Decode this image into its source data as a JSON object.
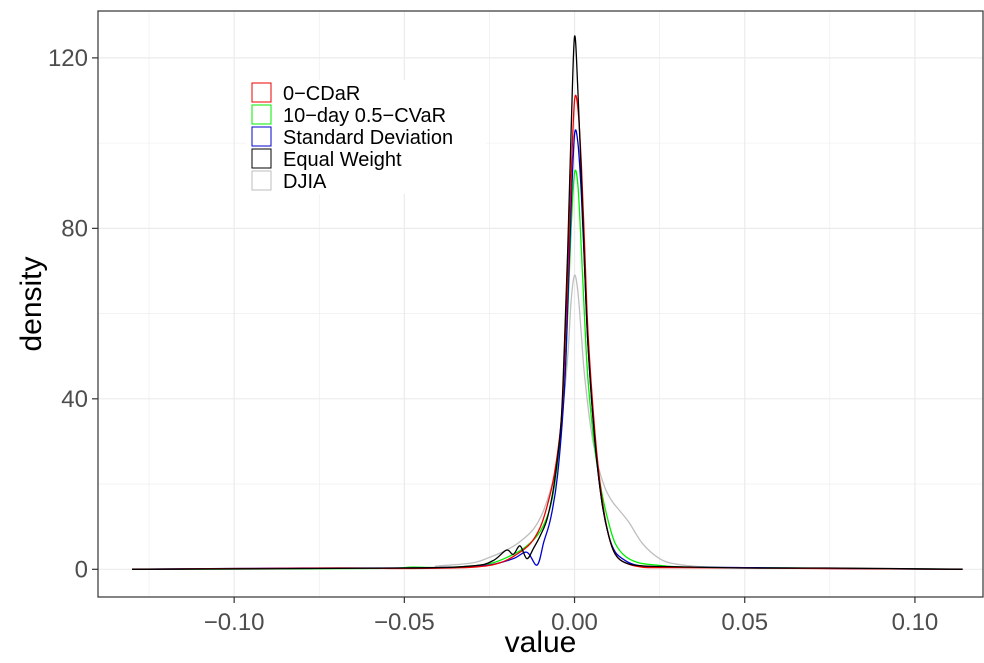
{
  "chart_data": {
    "type": "line",
    "title": "",
    "xlabel": "value",
    "ylabel": "density",
    "xlim": [
      -0.14,
      0.12
    ],
    "ylim": [
      -6.5,
      131
    ],
    "x_ticks": [
      -0.1,
      -0.05,
      0.0,
      0.05,
      0.1
    ],
    "x_tick_labels": [
      "−0.10",
      "−0.05",
      "0.00",
      "0.05",
      "0.10"
    ],
    "y_ticks": [
      0,
      40,
      80,
      120
    ],
    "y_tick_labels": [
      "0",
      "40",
      "80",
      "120"
    ],
    "grid": true,
    "legend_position": "top-left",
    "series": [
      {
        "name": "DJIA",
        "color": "#bebebe",
        "x": [
          -0.13,
          -0.05,
          -0.04,
          -0.03,
          -0.025,
          -0.02,
          -0.016,
          -0.012,
          -0.009,
          -0.006,
          -0.004,
          -0.002,
          -0.001,
          0.0,
          0.001,
          0.002,
          0.003,
          0.005,
          0.007,
          0.009,
          0.011,
          0.013,
          0.016,
          0.02,
          0.025,
          0.03,
          0.04,
          0.06,
          0.08,
          0.114
        ],
        "y": [
          0.1,
          0.3,
          0.8,
          1.5,
          2.8,
          4.5,
          6.5,
          9.5,
          14,
          22,
          33,
          50,
          63,
          69,
          65,
          55,
          45,
          32,
          24,
          19,
          16,
          14,
          11,
          6,
          2.5,
          1.2,
          0.5,
          0.3,
          0.2,
          0.1
        ]
      },
      {
        "name": "10−day 0.5−CVaR",
        "color": "#00ee00",
        "x": [
          -0.13,
          -0.06,
          -0.048,
          -0.04,
          -0.03,
          -0.024,
          -0.018,
          -0.014,
          -0.01,
          -0.007,
          -0.005,
          -0.003,
          -0.002,
          -0.001,
          0.0,
          0.001,
          0.002,
          0.003,
          0.004,
          0.006,
          0.008,
          0.01,
          0.012,
          0.015,
          0.019,
          0.024,
          0.03,
          0.045,
          0.065,
          0.114
        ],
        "y": [
          0.0,
          0.2,
          0.5,
          0.4,
          0.8,
          1.5,
          3.5,
          5.5,
          9,
          15,
          25,
          42,
          60,
          80,
          93,
          90,
          75,
          58,
          44,
          28,
          18,
          11,
          6,
          3,
          1.5,
          1.0,
          0.6,
          0.4,
          0.3,
          0.0
        ]
      },
      {
        "name": "Standard Deviation",
        "color": "#0000cd",
        "x": [
          -0.13,
          -0.08,
          -0.05,
          -0.035,
          -0.025,
          -0.018,
          -0.014,
          -0.011,
          -0.009,
          -0.007,
          -0.005,
          -0.003,
          -0.002,
          -0.001,
          0.0,
          0.001,
          0.002,
          0.003,
          0.004,
          0.006,
          0.008,
          0.01,
          0.012,
          0.015,
          0.018,
          0.022,
          0.03,
          0.05,
          0.075,
          0.114
        ],
        "y": [
          0.0,
          0.3,
          0.3,
          0.5,
          1.0,
          2.5,
          4.0,
          1.0,
          6.5,
          12,
          22,
          42,
          62,
          85,
          102,
          100,
          88,
          70,
          52,
          30,
          16,
          8,
          4,
          2,
          1.0,
          0.6,
          0.5,
          0.4,
          0.2,
          0.0
        ]
      },
      {
        "name": "0−CDaR",
        "color": "#ee0000",
        "x": [
          -0.13,
          -0.07,
          -0.05,
          -0.03,
          -0.022,
          -0.017,
          -0.013,
          -0.01,
          -0.008,
          -0.006,
          -0.004,
          -0.003,
          -0.002,
          -0.001,
          0.0,
          0.001,
          0.002,
          0.003,
          0.004,
          0.006,
          0.008,
          0.01,
          0.012,
          0.015,
          0.02,
          0.03,
          0.05,
          0.07,
          0.114
        ],
        "y": [
          0.0,
          0.3,
          0.2,
          0.5,
          1.5,
          3.5,
          6,
          10,
          15,
          22,
          34,
          48,
          68,
          92,
          110,
          108,
          95,
          75,
          55,
          32,
          17,
          8,
          3.5,
          1.5,
          0.5,
          0.4,
          0.3,
          0.2,
          0.0
        ]
      },
      {
        "name": "Equal Weight",
        "color": "#000000",
        "x": [
          -0.13,
          -0.05,
          -0.03,
          -0.024,
          -0.02,
          -0.018,
          -0.016,
          -0.014,
          -0.012,
          -0.01,
          -0.008,
          -0.006,
          -0.004,
          -0.003,
          -0.002,
          -0.001,
          0.0,
          0.001,
          0.002,
          0.003,
          0.004,
          0.006,
          0.008,
          0.01,
          0.012,
          0.015,
          0.02,
          0.03,
          0.05,
          0.074,
          0.114
        ],
        "y": [
          0.0,
          0.3,
          0.8,
          2.0,
          4.5,
          3.5,
          5.5,
          2.5,
          5.0,
          8.0,
          12,
          20,
          34,
          52,
          75,
          103,
          125,
          112,
          92,
          70,
          52,
          30,
          16,
          8,
          3.5,
          1.5,
          0.8,
          0.6,
          0.3,
          0.3,
          0.0
        ]
      }
    ]
  },
  "legend": {
    "items": [
      {
        "label": "0−CDaR",
        "color": "#ee0000"
      },
      {
        "label": "10−day 0.5−CVaR",
        "color": "#00ee00"
      },
      {
        "label": "Standard Deviation",
        "color": "#0000cd"
      },
      {
        "label": "Equal Weight",
        "color": "#000000"
      },
      {
        "label": "DJIA",
        "color": "#bebebe"
      }
    ]
  },
  "colors": {
    "grid": "#ebebeb",
    "axis": "#333333",
    "tick_label": "#4d4d4d"
  }
}
